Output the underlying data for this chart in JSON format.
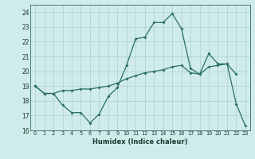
{
  "xlabel": "Humidex (Indice chaleur)",
  "x_values": [
    0,
    1,
    2,
    3,
    4,
    5,
    6,
    7,
    8,
    9,
    10,
    11,
    12,
    13,
    14,
    15,
    16,
    17,
    18,
    19,
    20,
    21,
    22,
    23
  ],
  "line1_y": [
    19.0,
    18.5,
    18.5,
    17.7,
    17.2,
    17.2,
    16.5,
    17.1,
    18.3,
    18.9,
    20.4,
    22.2,
    22.3,
    23.3,
    23.3,
    23.9,
    22.9,
    20.2,
    19.8,
    21.2,
    20.5,
    20.5,
    19.8,
    null
  ],
  "line2_y": [
    19.0,
    18.5,
    18.5,
    18.7,
    18.7,
    18.8,
    18.8,
    18.9,
    19.0,
    19.2,
    19.5,
    19.7,
    19.9,
    20.0,
    20.1,
    20.3,
    20.4,
    19.9,
    19.8,
    20.3,
    20.4,
    20.5,
    17.8,
    16.3
  ],
  "color": "#2a6e63",
  "bg_color": "#d0ecea",
  "grid_color": "#aacfcc",
  "ylim": [
    16,
    24.5
  ],
  "yticks": [
    16,
    17,
    18,
    19,
    20,
    21,
    22,
    23,
    24
  ],
  "xlim": [
    -0.5,
    23.5
  ],
  "xticks": [
    0,
    1,
    2,
    3,
    4,
    5,
    6,
    7,
    8,
    9,
    10,
    11,
    12,
    13,
    14,
    15,
    16,
    17,
    18,
    19,
    20,
    21,
    22,
    23
  ]
}
